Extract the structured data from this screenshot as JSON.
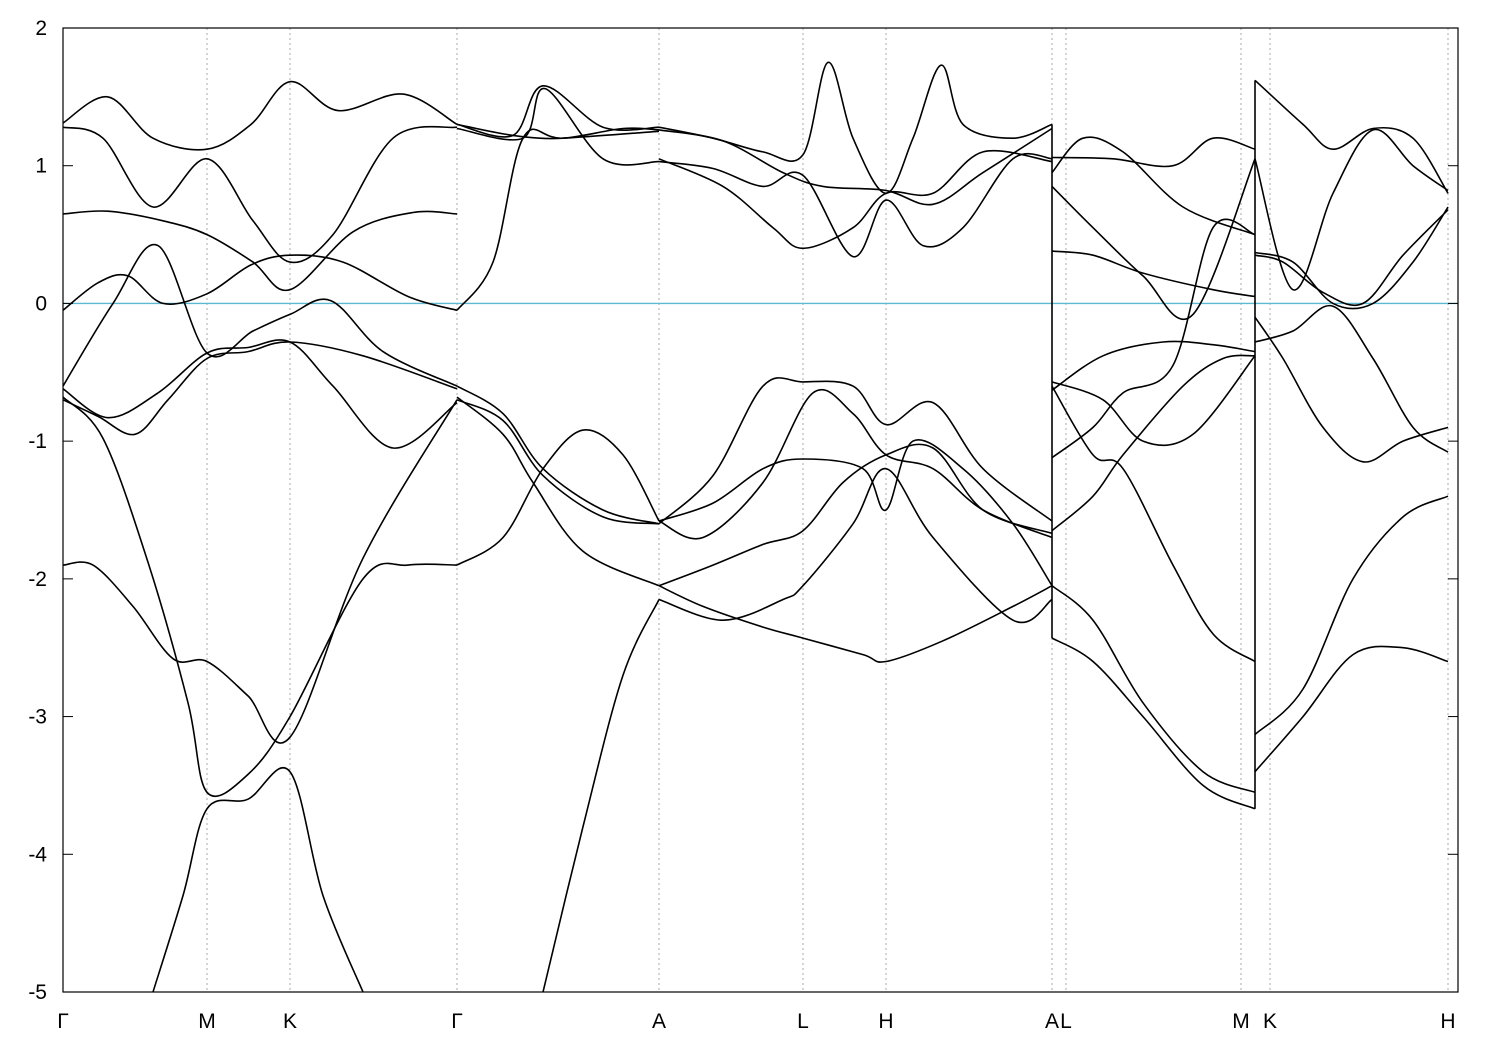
{
  "chart_data": {
    "type": "line",
    "title": "",
    "xlabel": "",
    "ylabel": "",
    "xlim": [
      0,
      1395
    ],
    "ylim": [
      -5,
      2
    ],
    "grid": false,
    "fermi_level": {
      "y": 0,
      "color": "#5fb8d0"
    },
    "y_ticks": [
      {
        "value": 2,
        "label": "2"
      },
      {
        "value": 1,
        "label": "1"
      },
      {
        "value": 0,
        "label": "0"
      },
      {
        "value": -1,
        "label": "-1"
      },
      {
        "value": -2,
        "label": "-2"
      },
      {
        "value": -3,
        "label": "-3"
      },
      {
        "value": -4,
        "label": "-4"
      },
      {
        "value": -5,
        "label": "-5"
      }
    ],
    "k_points": [
      {
        "x": 0,
        "label": "Γ"
      },
      {
        "x": 144,
        "label": "M"
      },
      {
        "x": 227,
        "label": "K"
      },
      {
        "x": 394,
        "label": "Γ"
      },
      {
        "x": 596,
        "label": "A"
      },
      {
        "x": 740,
        "label": "L"
      },
      {
        "x": 823,
        "label": "H"
      },
      {
        "x": 989,
        "label": "A"
      },
      {
        "x": 1003,
        "label": "L"
      },
      {
        "x": 1178,
        "label": "M"
      },
      {
        "x": 1207,
        "label": "K"
      },
      {
        "x": 1385,
        "label": "H"
      }
    ],
    "path_breaks": [
      989,
      1192
    ],
    "segments": [
      {
        "name": "Γ-M-K-Γ",
        "bands": [
          {
            "x": [
              0,
              45,
              90,
              144,
              188,
              227,
              275,
              340,
              394
            ],
            "y": [
              1.31,
              1.5,
              1.2,
              1.12,
              1.3,
              1.61,
              1.4,
              1.52,
              1.3
            ]
          },
          {
            "x": [
              0,
              40,
              90,
              144,
              190,
              227,
              270,
              330,
              394
            ],
            "y": [
              1.28,
              1.2,
              0.7,
              1.05,
              0.6,
              0.3,
              0.5,
              1.2,
              1.28
            ]
          },
          {
            "x": [
              0,
              45,
              100,
              144,
              190,
              227,
              290,
              350,
              394
            ],
            "y": [
              0.65,
              0.67,
              0.6,
              0.5,
              0.3,
              0.1,
              0.52,
              0.66,
              0.65
            ]
          },
          {
            "x": [
              0,
              35,
              65,
              100,
              144,
              188,
              227,
              280,
              345,
              394
            ],
            "y": [
              -0.05,
              0.15,
              0.2,
              0.0,
              0.07,
              0.28,
              0.35,
              0.3,
              0.05,
              -0.05
            ]
          },
          {
            "x": [
              0,
              50,
              95,
              144,
              190,
              227,
              268,
              320,
              394
            ],
            "y": [
              -0.6,
              0.0,
              0.42,
              -0.36,
              -0.2,
              -0.08,
              0.02,
              -0.35,
              -0.6
            ]
          },
          {
            "x": [
              0,
              45,
              95,
              144,
              185,
              227,
              270,
              330,
              394
            ],
            "y": [
              -0.62,
              -0.83,
              -0.65,
              -0.36,
              -0.32,
              -0.28,
              -0.6,
              -1.05,
              -0.72
            ]
          },
          {
            "x": [
              0,
              35,
              72,
              105,
              144,
              185,
              227,
              300,
              394
            ],
            "y": [
              -0.7,
              -0.82,
              -0.95,
              -0.7,
              -0.4,
              -0.35,
              -0.28,
              -0.38,
              -0.62
            ]
          },
          {
            "x": [
              0,
              40,
              85,
              125,
              144,
              185,
              227,
              300,
              345,
              394
            ],
            "y": [
              -0.68,
              -0.98,
              -1.88,
              -2.9,
              -3.55,
              -3.42,
              -3.0,
              -2.0,
              -1.9,
              -1.9
            ]
          },
          {
            "x": [
              0,
              30,
              70,
              110,
              144,
              185,
              227,
              300,
              394
            ],
            "y": [
              -1.9,
              -1.9,
              -2.2,
              -2.58,
              -2.6,
              -2.85,
              -3.15,
              -1.85,
              -0.7
            ]
          },
          {
            "x": [
              90,
              120,
              144,
              185,
              227,
              260,
              300
            ],
            "y": [
              -5.0,
              -4.3,
              -3.67,
              -3.6,
              -3.4,
              -4.3,
              -5.0
            ]
          }
        ]
      },
      {
        "name": "Γ-A",
        "bands": [
          {
            "x": [
              394,
              450,
              480,
              540,
              596
            ],
            "y": [
              1.3,
              1.22,
              1.58,
              1.28,
              1.28
            ]
          },
          {
            "x": [
              394,
              460,
              482,
              540,
              596
            ],
            "y": [
              1.27,
              1.2,
              1.56,
              1.05,
              1.03
            ]
          },
          {
            "x": [
              394,
              450,
              500,
              560,
              596
            ],
            "y": [
              1.3,
              1.22,
              1.2,
              1.27,
              1.26
            ]
          },
          {
            "x": [
              394,
              430,
              460,
              500,
              596
            ],
            "y": [
              -0.05,
              0.3,
              1.2,
              1.2,
              1.25
            ]
          },
          {
            "x": [
              394,
              440,
              480,
              540,
              596
            ],
            "y": [
              -0.6,
              -0.8,
              -1.2,
              -1.5,
              -1.6
            ]
          },
          {
            "x": [
              394,
              440,
              480,
              540,
              596
            ],
            "y": [
              -0.7,
              -0.85,
              -1.25,
              -1.55,
              -1.6
            ]
          },
          {
            "x": [
              394,
              440,
              470,
              520,
              596
            ],
            "y": [
              -0.68,
              -0.95,
              -1.3,
              -1.8,
              -2.05
            ]
          },
          {
            "x": [
              394,
              440,
              480,
              520,
              560,
              596
            ],
            "y": [
              -1.9,
              -1.7,
              -1.2,
              -0.92,
              -1.1,
              -1.58
            ]
          },
          {
            "x": [
              480,
              520,
              560,
              596
            ],
            "y": [
              -5.0,
              -3.8,
              -2.7,
              -2.15
            ]
          }
        ]
      },
      {
        "name": "A-L-H-A",
        "bands": [
          {
            "x": [
              596,
              650,
              700,
              740,
              765,
              790,
              823,
              850,
              878,
              900,
              950,
              989
            ],
            "y": [
              1.28,
              1.2,
              1.1,
              1.08,
              1.75,
              1.2,
              0.8,
              1.2,
              1.73,
              1.3,
              1.2,
              1.3
            ]
          },
          {
            "x": [
              596,
              650,
              700,
              740,
              790,
              823,
              860,
              900,
              950,
              989
            ],
            "y": [
              1.03,
              0.98,
              0.85,
              0.93,
              0.34,
              0.75,
              0.42,
              0.55,
              1.05,
              1.05
            ]
          },
          {
            "x": [
              596,
              660,
              710,
              740,
              790,
              823,
              870,
              920,
              989
            ],
            "y": [
              1.05,
              0.85,
              0.55,
              0.4,
              0.55,
              0.8,
              0.8,
              1.1,
              1.03
            ]
          },
          {
            "x": [
              596,
              660,
              720,
              760,
              823,
              870,
              920,
              989
            ],
            "y": [
              1.26,
              1.18,
              0.95,
              0.85,
              0.82,
              0.72,
              0.95,
              1.27
            ]
          },
          {
            "x": [
              596,
              650,
              700,
              740,
              790,
              823,
              870,
              920,
              989
            ],
            "y": [
              -1.6,
              -1.25,
              -0.6,
              -0.57,
              -0.6,
              -0.88,
              -0.72,
              -1.2,
              -1.58
            ]
          },
          {
            "x": [
              596,
              640,
              700,
              750,
              790,
              823,
              870,
              920,
              989
            ],
            "y": [
              -1.58,
              -1.7,
              -1.3,
              -0.65,
              -0.8,
              -1.1,
              -1.2,
              -1.5,
              -1.7
            ]
          },
          {
            "x": [
              596,
              650,
              700,
              740,
              800,
              823,
              850,
              900,
              950,
              989
            ],
            "y": [
              -1.58,
              -1.45,
              -1.2,
              -1.13,
              -1.2,
              -1.5,
              -1.0,
              -1.2,
              -1.6,
              -2.05
            ]
          },
          {
            "x": [
              596,
              650,
              700,
              740,
              780,
              823,
              870,
              920,
              989
            ],
            "y": [
              -2.05,
              -1.9,
              -1.75,
              -1.65,
              -1.3,
              -1.1,
              -1.05,
              -1.5,
              -1.67
            ]
          },
          {
            "x": [
              596,
              640,
              700,
              740,
              800,
              823,
              880,
              950,
              989
            ],
            "y": [
              -2.05,
              -2.2,
              -2.35,
              -2.43,
              -2.55,
              -2.6,
              -2.45,
              -2.2,
              -2.05
            ]
          },
          {
            "x": [
              596,
              660,
              720,
              740,
              790,
              823,
              870,
              950,
              989
            ],
            "y": [
              -2.15,
              -2.3,
              -2.15,
              -2.05,
              -1.6,
              -1.2,
              -1.7,
              -2.3,
              -2.15
            ]
          }
        ]
      },
      {
        "name": "L-M",
        "bands": [
          {
            "x": [
              989,
              1050,
              1110,
              1150,
              1192
            ],
            "y": [
              1.06,
              1.05,
              1.0,
              1.2,
              1.12
            ]
          },
          {
            "x": [
              989,
              1020,
              1060,
              1120,
              1192
            ],
            "y": [
              0.95,
              1.2,
              1.1,
              0.7,
              0.5
            ]
          },
          {
            "x": [
              989,
              1030,
              1080,
              1130,
              1192
            ],
            "y": [
              0.85,
              0.55,
              0.2,
              -0.08,
              1.05
            ]
          },
          {
            "x": [
              989,
              1030,
              1080,
              1150,
              1192
            ],
            "y": [
              0.38,
              0.35,
              0.22,
              0.1,
              0.05
            ]
          },
          {
            "x": [
              989,
              1040,
              1080,
              1130,
              1192
            ],
            "y": [
              -0.57,
              -0.7,
              -1.0,
              -0.95,
              -0.38
            ]
          },
          {
            "x": [
              989,
              1040,
              1100,
              1150,
              1192
            ],
            "y": [
              -0.63,
              -0.38,
              -0.28,
              -0.3,
              -0.35
            ]
          },
          {
            "x": [
              989,
              1030,
              1060,
              1110,
              1150,
              1192
            ],
            "y": [
              -1.12,
              -0.9,
              -0.65,
              -0.45,
              0.55,
              0.5
            ]
          },
          {
            "x": [
              989,
              1030,
              1060,
              1120,
              1160,
              1192
            ],
            "y": [
              -1.65,
              -1.4,
              -1.1,
              -0.6,
              -0.4,
              -0.38
            ]
          },
          {
            "x": [
              989,
              1030,
              1060,
              1110,
              1150,
              1192
            ],
            "y": [
              -0.6,
              -1.1,
              -1.2,
              -1.9,
              -2.4,
              -2.6
            ]
          },
          {
            "x": [
              989,
              1030,
              1080,
              1140,
              1192
            ],
            "y": [
              -2.05,
              -2.3,
              -2.9,
              -3.4,
              -3.55
            ]
          },
          {
            "x": [
              989,
              1030,
              1080,
              1140,
              1192
            ],
            "y": [
              -2.43,
              -2.6,
              -3.0,
              -3.5,
              -3.67
            ]
          }
        ]
      },
      {
        "name": "K-H",
        "bands": [
          {
            "x": [
              1192,
              1240,
              1270,
              1310,
              1350,
              1385
            ],
            "y": [
              1.62,
              1.3,
              1.12,
              1.27,
              1.2,
              0.8
            ]
          },
          {
            "x": [
              1192,
              1230,
              1270,
              1310,
              1350,
              1385
            ],
            "y": [
              1.05,
              0.1,
              0.8,
              1.26,
              1.0,
              0.82
            ]
          },
          {
            "x": [
              1192,
              1230,
              1270,
              1310,
              1350,
              1385
            ],
            "y": [
              0.37,
              0.3,
              0.0,
              0.0,
              0.3,
              0.7
            ]
          },
          {
            "x": [
              1192,
              1220,
              1260,
              1300,
              1340,
              1385
            ],
            "y": [
              0.35,
              0.3,
              0.08,
              0.0,
              0.35,
              0.68
            ]
          },
          {
            "x": [
              1192,
              1230,
              1270,
              1310,
              1350,
              1385
            ],
            "y": [
              -0.28,
              -0.2,
              -0.02,
              -0.4,
              -0.9,
              -1.08
            ]
          },
          {
            "x": [
              1192,
              1220,
              1260,
              1300,
              1340,
              1385
            ],
            "y": [
              -0.1,
              -0.4,
              -0.9,
              -1.15,
              -1.0,
              -0.9
            ]
          },
          {
            "x": [
              1192,
              1240,
              1290,
              1340,
              1385
            ],
            "y": [
              -3.13,
              -2.8,
              -2.0,
              -1.55,
              -1.4
            ]
          },
          {
            "x": [
              1192,
              1240,
              1290,
              1340,
              1385
            ],
            "y": [
              -3.4,
              -3.0,
              -2.55,
              -2.5,
              -2.6
            ]
          }
        ]
      }
    ]
  }
}
